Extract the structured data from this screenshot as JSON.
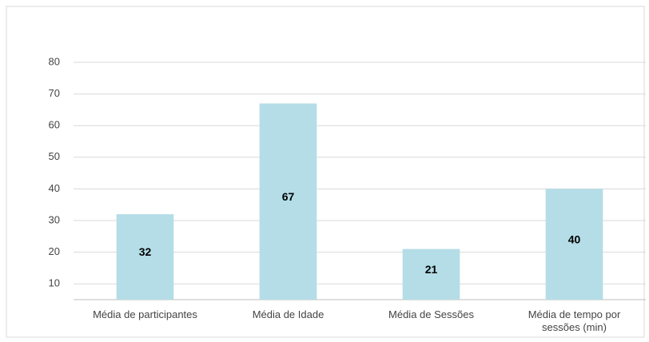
{
  "chart_data": {
    "type": "bar",
    "categories": [
      "Média de participantes",
      "Média de Idade",
      "Média de Sessões",
      "Média de tempo por sessões (min)"
    ],
    "values": [
      32,
      67,
      21,
      40
    ],
    "color": "#b4dde7",
    "ylim": [
      5,
      80
    ],
    "yticks": [
      10,
      20,
      30,
      40,
      50,
      60,
      70,
      80
    ],
    "grid": true
  }
}
